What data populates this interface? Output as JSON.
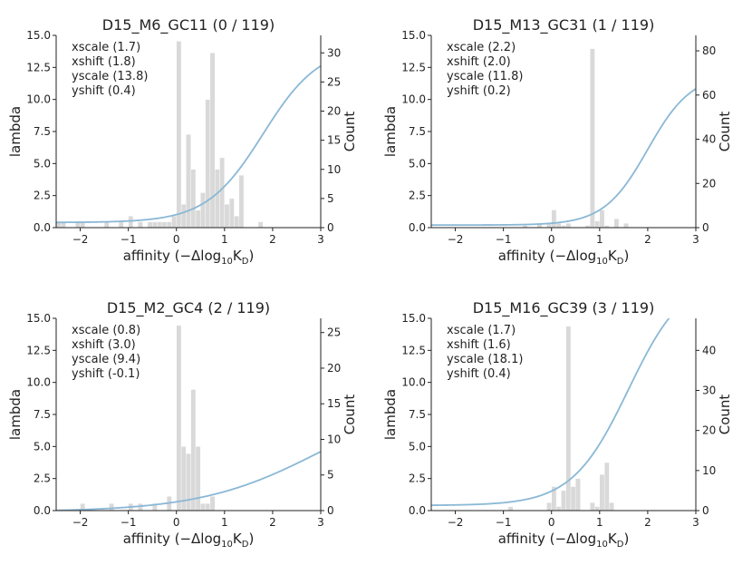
{
  "axis_common": {
    "xlabel": "affinity (−Δlog",
    "xlabel_sub": "10",
    "xlabel_k": "K",
    "xlabel_ksub": "D",
    "xlabel_end": ")",
    "ylabel": "lambda",
    "y2label": "Count"
  },
  "chart_data": [
    {
      "type": "bar",
      "title": "D15_M6_GC11 (0 / 119)",
      "annotations": [
        "xscale (1.7)",
        "xshift (1.8)",
        "yscale (13.8)",
        "yshift (0.4)"
      ],
      "params": {
        "xscale": 1.7,
        "xshift": 1.8,
        "yscale": 13.8,
        "yshift": 0.4
      },
      "xlim": [
        -2.5,
        3
      ],
      "xticks": [
        -2,
        -1,
        0,
        1,
        2,
        3
      ],
      "xtick_labels": [
        "−2",
        "−1",
        "0",
        "1",
        "2",
        "3"
      ],
      "ylim": [
        0,
        15
      ],
      "yticks": [
        0,
        2.5,
        5,
        7.5,
        10,
        12.5,
        15
      ],
      "ytick_labels": [
        "0.0",
        "2.5",
        "5.0",
        "7.5",
        "10.0",
        "12.5",
        "15.0"
      ],
      "y2lim": [
        0,
        33
      ],
      "y2ticks": [
        0,
        5,
        10,
        15,
        20,
        25,
        30
      ],
      "y2tick_labels": [
        "0",
        "5",
        "10",
        "15",
        "20",
        "25",
        "30"
      ],
      "bin_width": 0.1,
      "bars": [
        [
          -2.5,
          1
        ],
        [
          -2.4,
          1
        ],
        [
          -2.1,
          1
        ],
        [
          -2.0,
          1
        ],
        [
          -1.5,
          1
        ],
        [
          -1.2,
          1
        ],
        [
          -1.0,
          2
        ],
        [
          -0.8,
          1
        ],
        [
          -0.6,
          1
        ],
        [
          -0.5,
          1
        ],
        [
          -0.4,
          1
        ],
        [
          -0.3,
          1
        ],
        [
          -0.2,
          1
        ],
        [
          -0.1,
          2
        ],
        [
          0.0,
          32
        ],
        [
          0.1,
          4
        ],
        [
          0.2,
          16
        ],
        [
          0.3,
          10
        ],
        [
          0.4,
          3
        ],
        [
          0.5,
          6
        ],
        [
          0.6,
          22
        ],
        [
          0.7,
          30
        ],
        [
          0.8,
          10
        ],
        [
          0.9,
          12
        ],
        [
          1.0,
          4
        ],
        [
          1.1,
          5
        ],
        [
          1.2,
          2
        ],
        [
          1.3,
          9
        ],
        [
          1.7,
          1
        ]
      ]
    },
    {
      "type": "bar",
      "title": "D15_M13_GC31 (1 / 119)",
      "annotations": [
        "xscale (2.2)",
        "xshift (2.0)",
        "yscale (11.8)",
        "yshift (0.2)"
      ],
      "params": {
        "xscale": 2.2,
        "xshift": 2.0,
        "yscale": 11.8,
        "yshift": 0.2
      },
      "xlim": [
        -2.5,
        3
      ],
      "xticks": [
        -2,
        -1,
        0,
        1,
        2,
        3
      ],
      "xtick_labels": [
        "−2",
        "−1",
        "0",
        "1",
        "2",
        "3"
      ],
      "ylim": [
        0,
        15
      ],
      "yticks": [
        0,
        2.5,
        5,
        7.5,
        10,
        12.5,
        15
      ],
      "ytick_labels": [
        "0.0",
        "2.5",
        "5.0",
        "7.5",
        "10.0",
        "12.5",
        "15.0"
      ],
      "y2lim": [
        0,
        87
      ],
      "y2ticks": [
        0,
        20,
        40,
        60,
        80
      ],
      "y2tick_labels": [
        "0",
        "20",
        "40",
        "60",
        "80"
      ],
      "bin_width": 0.1,
      "bars": [
        [
          -0.6,
          1
        ],
        [
          -0.3,
          2
        ],
        [
          -0.1,
          2
        ],
        [
          0.0,
          8
        ],
        [
          0.1,
          2
        ],
        [
          0.2,
          1
        ],
        [
          0.3,
          2
        ],
        [
          0.7,
          1
        ],
        [
          0.8,
          81
        ],
        [
          0.9,
          3
        ],
        [
          1.0,
          8
        ],
        [
          1.1,
          1
        ],
        [
          1.3,
          4
        ],
        [
          1.5,
          2
        ]
      ]
    },
    {
      "type": "bar",
      "title": "D15_M2_GC4 (2 / 119)",
      "annotations": [
        "xscale (0.8)",
        "xshift (3.0)",
        "yscale (9.4)",
        "yshift (-0.1)"
      ],
      "params": {
        "xscale": 0.8,
        "xshift": 3.0,
        "yscale": 9.4,
        "yshift": -0.1
      },
      "xlim": [
        -2.5,
        3
      ],
      "xticks": [
        -2,
        -1,
        0,
        1,
        2,
        3
      ],
      "xtick_labels": [
        "−2",
        "−1",
        "0",
        "1",
        "2",
        "3"
      ],
      "ylim": [
        0,
        15
      ],
      "yticks": [
        0,
        2.5,
        5,
        7.5,
        10,
        12.5,
        15
      ],
      "ytick_labels": [
        "0.0",
        "2.5",
        "5.0",
        "7.5",
        "10.0",
        "12.5",
        "15.0"
      ],
      "y2lim": [
        0,
        27
      ],
      "y2ticks": [
        0,
        5,
        10,
        15,
        20,
        25
      ],
      "y2tick_labels": [
        "0",
        "5",
        "10",
        "15",
        "20",
        "25"
      ],
      "bin_width": 0.1,
      "bars": [
        [
          -2.0,
          1
        ],
        [
          -1.4,
          1
        ],
        [
          -1.0,
          1
        ],
        [
          -0.8,
          1
        ],
        [
          -0.5,
          1
        ],
        [
          -0.2,
          2
        ],
        [
          0.0,
          26
        ],
        [
          0.1,
          9
        ],
        [
          0.2,
          8
        ],
        [
          0.3,
          17
        ],
        [
          0.4,
          9
        ],
        [
          0.5,
          1
        ],
        [
          0.6,
          1
        ],
        [
          0.7,
          2
        ]
      ]
    },
    {
      "type": "bar",
      "title": "D15_M16_GC39 (3 / 119)",
      "annotations": [
        "xscale (1.7)",
        "xshift (1.6)",
        "yscale (18.1)",
        "yshift (0.4)"
      ],
      "params": {
        "xscale": 1.7,
        "xshift": 1.6,
        "yscale": 18.1,
        "yshift": 0.4
      },
      "xlim": [
        -2.5,
        3
      ],
      "xticks": [
        -2,
        -1,
        0,
        1,
        2,
        3
      ],
      "xtick_labels": [
        "−2",
        "−1",
        "0",
        "1",
        "2",
        "3"
      ],
      "ylim": [
        0,
        15
      ],
      "yticks": [
        0,
        2.5,
        5,
        7.5,
        10,
        12.5,
        15
      ],
      "ytick_labels": [
        "0.0",
        "2.5",
        "5.0",
        "7.5",
        "10.0",
        "12.5",
        "15.0"
      ],
      "y2lim": [
        0,
        48
      ],
      "y2ticks": [
        0,
        10,
        20,
        30,
        40
      ],
      "y2tick_labels": [
        "0",
        "10",
        "20",
        "30",
        "40"
      ],
      "bin_width": 0.1,
      "bars": [
        [
          -0.9,
          1
        ],
        [
          -0.1,
          2
        ],
        [
          0.0,
          6
        ],
        [
          0.1,
          1
        ],
        [
          0.2,
          5
        ],
        [
          0.3,
          46
        ],
        [
          0.4,
          6
        ],
        [
          0.5,
          8
        ],
        [
          0.8,
          2
        ],
        [
          0.9,
          1
        ],
        [
          1.0,
          9
        ],
        [
          1.1,
          12
        ],
        [
          1.2,
          2
        ]
      ]
    }
  ]
}
